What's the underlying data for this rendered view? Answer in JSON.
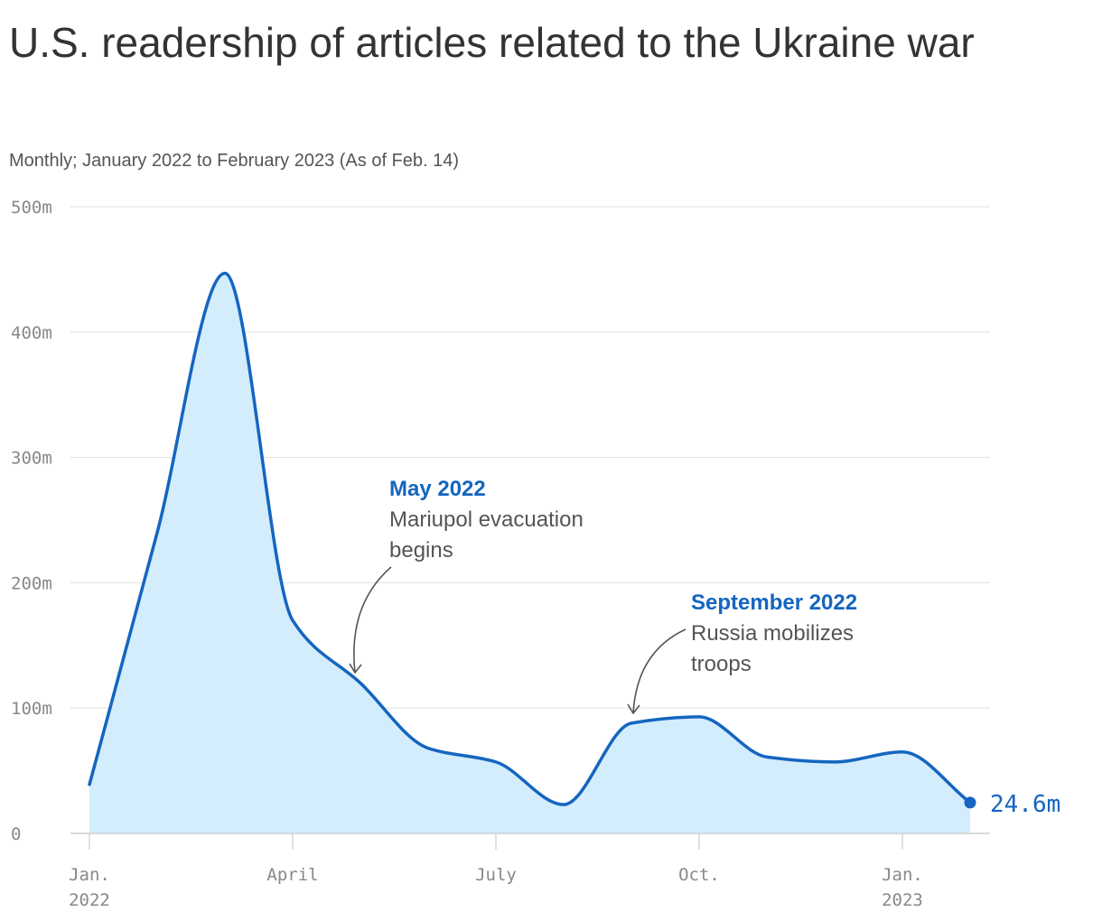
{
  "chart_data": {
    "type": "area",
    "title": "U.S. readership of articles related to the Ukraine war",
    "subtitle": "Monthly; January 2022 to February 2023 (As of Feb. 14)",
    "unit": "m",
    "x": [
      "2022-01",
      "2022-02",
      "2022-03",
      "2022-04",
      "2022-05",
      "2022-06",
      "2022-07",
      "2022-08",
      "2022-09",
      "2022-10",
      "2022-11",
      "2022-12",
      "2023-01",
      "2023-02"
    ],
    "values": [
      39,
      240,
      447,
      170,
      120,
      68,
      57,
      23,
      88,
      93,
      61,
      57,
      65,
      24.6
    ],
    "ylim": [
      0,
      500
    ],
    "y_ticks": [
      "0",
      "100m",
      "200m",
      "300m",
      "400m",
      "500m"
    ],
    "x_ticks": [
      {
        "line1": "Jan.",
        "line2": "2022"
      },
      {
        "line1": "April",
        "line2": ""
      },
      {
        "line1": "July",
        "line2": ""
      },
      {
        "line1": "Oct.",
        "line2": ""
      },
      {
        "line1": "Jan.",
        "line2": "2023"
      }
    ],
    "grid": true,
    "colors": {
      "line": "#1565c0",
      "fill": "#d3edfc",
      "grid": "#e4e4e4",
      "axis": "#cccccc"
    },
    "annotations": [
      {
        "title": "May 2022",
        "lines": [
          "Mariupol evacuation",
          "begins"
        ]
      },
      {
        "title": "September 2022",
        "lines": [
          "Russia mobilizes",
          "troops"
        ]
      }
    ],
    "end_label": "24.6m"
  }
}
